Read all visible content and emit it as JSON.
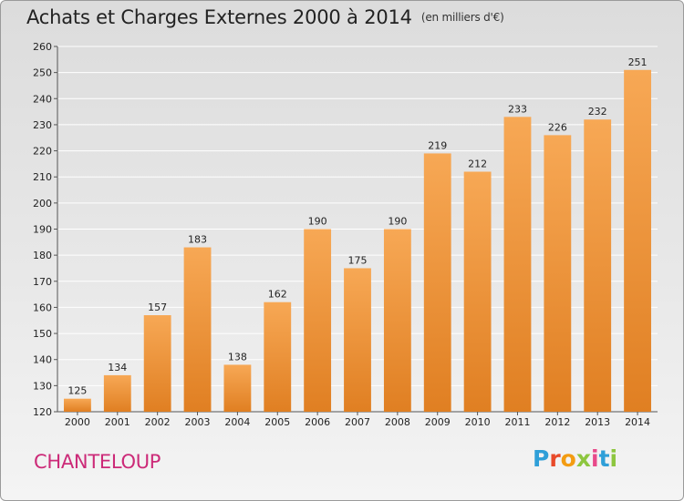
{
  "header": {
    "title": "Achats et Charges Externes 2000 à 2014",
    "unit": "(en milliers d'€)"
  },
  "footer": {
    "commune": "CHANTELOUP",
    "logo_letters": [
      "P",
      "r",
      "o",
      "x",
      "i",
      "t",
      "i"
    ]
  },
  "colors": {
    "bar_light": "#f7a855",
    "bar_dark": "#e07f22",
    "grid": "#ffffff",
    "commune": "#cc2a78"
  },
  "chart_data": {
    "type": "bar",
    "title": "Achats et Charges Externes 2000 à 2014",
    "subtitle": "(en milliers d'€)",
    "xlabel": "",
    "ylabel": "",
    "categories": [
      "2000",
      "2001",
      "2002",
      "2003",
      "2004",
      "2005",
      "2006",
      "2007",
      "2008",
      "2009",
      "2010",
      "2011",
      "2012",
      "2013",
      "2014"
    ],
    "values": [
      125,
      134,
      157,
      183,
      138,
      162,
      190,
      175,
      190,
      219,
      212,
      233,
      226,
      232,
      251
    ],
    "data_labels": [
      "125",
      "134",
      "157",
      "183",
      "138",
      "162",
      "190",
      "175",
      "190",
      "219",
      "212",
      "233",
      "226",
      "232",
      "251"
    ],
    "ylim": [
      120,
      260
    ],
    "yticks": [
      120,
      130,
      140,
      150,
      160,
      170,
      180,
      190,
      200,
      210,
      220,
      230,
      240,
      250,
      260
    ],
    "grid": true,
    "legend": "none"
  }
}
